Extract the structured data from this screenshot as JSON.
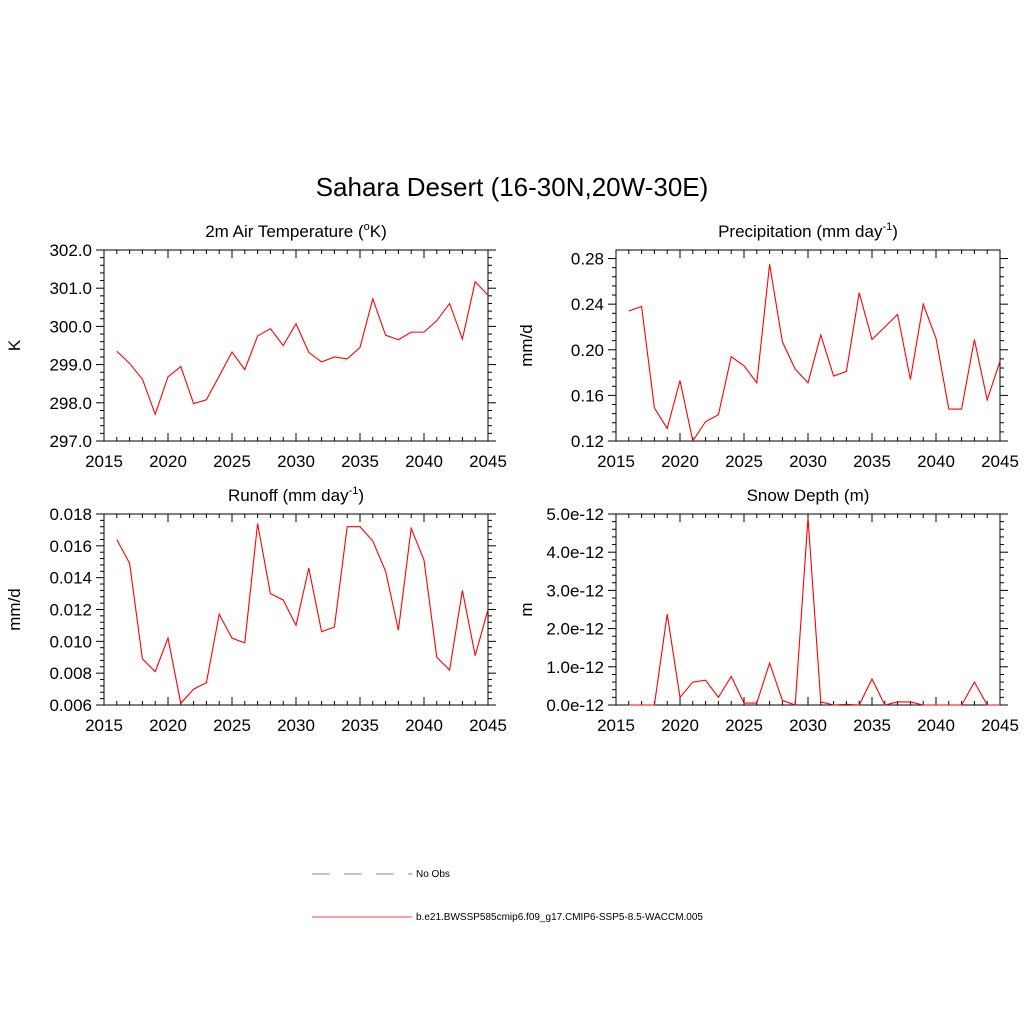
{
  "figure": {
    "title": "Sahara Desert (16-30N,20W-30E)"
  },
  "chart_data": [
    {
      "type": "line",
      "title": "2m Air Temperature (",
      "title_sup": "o",
      "title_tail": "K)",
      "ylabel": "K",
      "xlim": [
        2015,
        2045
      ],
      "ylim": [
        297.0,
        302.0
      ],
      "xticks": [
        2015,
        2020,
        2025,
        2030,
        2035,
        2040,
        2045
      ],
      "yticks": [
        297.0,
        298.0,
        299.0,
        300.0,
        301.0,
        302.0
      ],
      "ytick_labels": [
        "297.0",
        "298.0",
        "299.0",
        "300.0",
        "301.0",
        "302.0"
      ],
      "x": [
        2016,
        2017,
        2018,
        2019,
        2020,
        2021,
        2022,
        2023,
        2024,
        2025,
        2026,
        2027,
        2028,
        2029,
        2030,
        2031,
        2032,
        2033,
        2034,
        2035,
        2036,
        2037,
        2038,
        2039,
        2040,
        2041,
        2042,
        2043,
        2044,
        2045
      ],
      "series": [
        {
          "values": [
            299.35,
            299.03,
            298.62,
            297.7,
            298.68,
            298.95,
            297.98,
            298.08,
            298.7,
            299.33,
            298.87,
            299.75,
            299.94,
            299.5,
            300.07,
            299.32,
            299.07,
            299.2,
            299.15,
            299.45,
            300.72,
            299.77,
            299.65,
            299.85,
            299.85,
            300.15,
            300.6,
            299.67,
            301.17,
            300.82
          ],
          "color": "#ff0000"
        }
      ]
    },
    {
      "type": "line",
      "title": "Precipitation (mm day",
      "title_sup": "-1",
      "title_tail": ")",
      "ylabel": "mm/d",
      "xlim": [
        2015,
        2045
      ],
      "ylim": [
        0.12,
        0.28
      ],
      "ylim_top": 0.2875,
      "xticks": [
        2015,
        2020,
        2025,
        2030,
        2035,
        2040,
        2045
      ],
      "yticks": [
        0.12,
        0.16,
        0.2,
        0.24,
        0.28
      ],
      "ytick_labels": [
        "0.12",
        "0.16",
        "0.20",
        "0.24",
        "0.28"
      ],
      "x": [
        2016,
        2017,
        2018,
        2019,
        2020,
        2021,
        2022,
        2023,
        2024,
        2025,
        2026,
        2027,
        2028,
        2029,
        2030,
        2031,
        2032,
        2033,
        2034,
        2035,
        2036,
        2037,
        2038,
        2039,
        2040,
        2041,
        2042,
        2043,
        2044,
        2045
      ],
      "series": [
        {
          "values": [
            0.234,
            0.238,
            0.149,
            0.131,
            0.173,
            0.12,
            0.137,
            0.143,
            0.194,
            0.186,
            0.171,
            0.275,
            0.207,
            0.183,
            0.171,
            0.213,
            0.177,
            0.181,
            0.25,
            0.209,
            0.22,
            0.231,
            0.174,
            0.24,
            0.21,
            0.148,
            0.148,
            0.209,
            0.156,
            0.19
          ],
          "color": "#ff0000"
        }
      ]
    },
    {
      "type": "line",
      "title": "Runoff (mm day",
      "title_sup": "-1",
      "title_tail": ")",
      "ylabel": "mm/d",
      "xlim": [
        2015,
        2045
      ],
      "ylim": [
        0.006,
        0.018
      ],
      "xticks": [
        2015,
        2020,
        2025,
        2030,
        2035,
        2040,
        2045
      ],
      "yticks": [
        0.006,
        0.008,
        0.01,
        0.012,
        0.014,
        0.016,
        0.018
      ],
      "ytick_labels": [
        "0.006",
        "0.008",
        "0.010",
        "0.012",
        "0.014",
        "0.016",
        "0.018"
      ],
      "x": [
        2016,
        2017,
        2018,
        2019,
        2020,
        2021,
        2022,
        2023,
        2024,
        2025,
        2026,
        2027,
        2028,
        2029,
        2030,
        2031,
        2032,
        2033,
        2034,
        2035,
        2036,
        2037,
        2038,
        2039,
        2040,
        2041,
        2042,
        2043,
        2044,
        2045
      ],
      "series": [
        {
          "values": [
            0.0164,
            0.0149,
            0.0089,
            0.0081,
            0.0102,
            0.0061,
            0.007,
            0.0074,
            0.0117,
            0.0102,
            0.0099,
            0.0174,
            0.013,
            0.0126,
            0.011,
            0.0146,
            0.0106,
            0.0109,
            0.0172,
            0.0172,
            0.0163,
            0.0144,
            0.0107,
            0.0171,
            0.0151,
            0.009,
            0.0082,
            0.0132,
            0.0091,
            0.012
          ],
          "color": "#ff0000"
        }
      ]
    },
    {
      "type": "line",
      "title": "Snow Depth (m)",
      "title_sup": "",
      "title_tail": "",
      "ylabel": "m",
      "xlim": [
        2015,
        2045
      ],
      "ylim": [
        0.0,
        5e-12
      ],
      "xticks": [
        2015,
        2020,
        2025,
        2030,
        2035,
        2040,
        2045
      ],
      "yticks": [
        0.0,
        1e-12,
        2e-12,
        3e-12,
        4e-12,
        5e-12
      ],
      "ytick_labels": [
        "0.0e-12",
        "1.0e-12",
        "2.0e-12",
        "3.0e-12",
        "4.0e-12",
        "5.0e-12"
      ],
      "x": [
        2016,
        2017,
        2018,
        2019,
        2020,
        2021,
        2022,
        2023,
        2024,
        2025,
        2026,
        2027,
        2028,
        2029,
        2030,
        2031,
        2032,
        2033,
        2034,
        2035,
        2036,
        2037,
        2038,
        2039,
        2040,
        2041,
        2042,
        2043,
        2044,
        2045
      ],
      "series": [
        {
          "values": [
            0,
            0,
            0,
            2.38e-12,
            2e-13,
            6e-13,
            6.5e-13,
            2e-13,
            7.5e-13,
            5e-14,
            5e-14,
            1.1e-12,
            1.2e-13,
            0,
            4.9e-12,
            8e-14,
            0,
            2e-14,
            0,
            6.8e-13,
            0,
            8e-14,
            8e-14,
            0,
            0,
            0,
            0,
            6e-13,
            0,
            0
          ],
          "color": "#ff0000"
        }
      ]
    }
  ],
  "legend": {
    "items": [
      {
        "label": "No Obs",
        "style": "dashed",
        "color": "#9999dd"
      },
      {
        "label": "b.e21.BWSSP585cmip6.f09_g17.CMIP6-SSP5-8.5-WACCM.005",
        "style": "solid",
        "color": "#ff6677"
      }
    ]
  }
}
